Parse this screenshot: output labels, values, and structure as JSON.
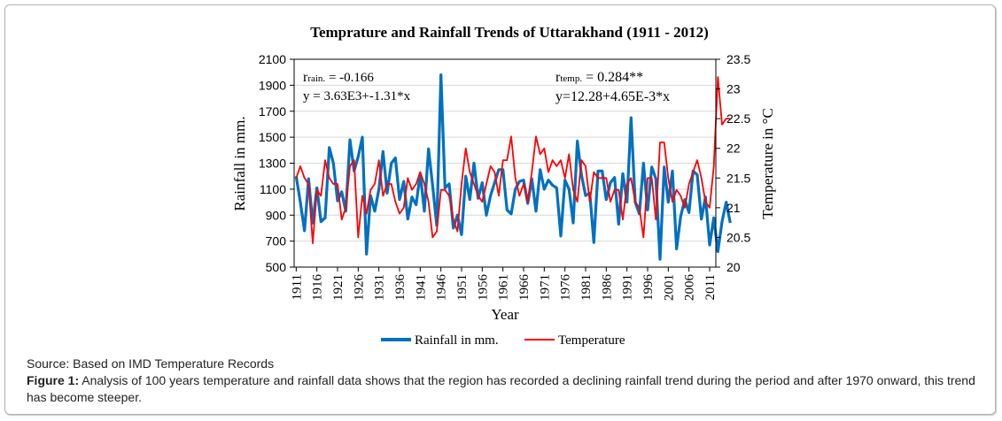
{
  "chart_data": {
    "type": "line",
    "title": "Temprature and Rainfall Trends of Uttarakhand (1911 - 2012)",
    "xlabel": "Year",
    "ylabel": "Rainfall in mm.",
    "y2label": "Temperature in °C",
    "x_start": 1911,
    "x_end": 2012,
    "x_ticks": [
      "1911",
      "1916",
      "1921",
      "1926",
      "1931",
      "1936",
      "1941",
      "1946",
      "1951",
      "1956",
      "1961",
      "1966",
      "1971",
      "1976",
      "1981",
      "1986",
      "1991",
      "1996",
      "2001",
      "2006",
      "2011"
    ],
    "ylim": [
      500,
      2100
    ],
    "y_ticks": [
      "500",
      "700",
      "900",
      "1100",
      "1300",
      "1500",
      "1700",
      "1900",
      "2100"
    ],
    "y2lim": [
      20,
      23.5
    ],
    "y2_ticks": [
      "20",
      "20.5",
      "21",
      "21.5",
      "22",
      "22.5",
      "23",
      "23.5"
    ],
    "grid": true,
    "legend_position": "bottom",
    "annotations": {
      "rain_r_label": "r",
      "rain_r_sub": "rain.",
      "rain_r_value": " = -0.166",
      "rain_eq": "y = 3.63E3+-1.31*x",
      "temp_r_label": "r",
      "temp_r_sub": "temp.",
      "temp_r_value": " = 0.284**",
      "temp_eq": "y=12.28+4.65E-3*x"
    },
    "series": [
      {
        "name": "Rainfall in mm.",
        "axis": "left",
        "color": "#0070c0",
        "values": [
          1200,
          1000,
          780,
          1180,
          840,
          1110,
          850,
          880,
          1420,
          1300,
          1010,
          1080,
          930,
          1480,
          1240,
          1350,
          1500,
          600,
          1050,
          930,
          1100,
          1390,
          1070,
          1300,
          1340,
          1020,
          1160,
          870,
          1040,
          980,
          1220,
          930,
          1410,
          1130,
          820,
          1980,
          1110,
          1140,
          800,
          900,
          750,
          1200,
          1020,
          1300,
          1030,
          1150,
          900,
          1050,
          1150,
          1250,
          1250,
          940,
          910,
          1100,
          1160,
          1170,
          990,
          1180,
          930,
          1250,
          1100,
          1170,
          1130,
          1110,
          740,
          1170,
          1100,
          840,
          1470,
          1210,
          1050,
          1070,
          690,
          1240,
          1240,
          1020,
          1150,
          1190,
          830,
          1220,
          1000,
          1650,
          1000,
          910,
          1300,
          940,
          1270,
          1180,
          560,
          1270,
          1000,
          1240,
          640,
          890,
          1020,
          920,
          1240,
          1210,
          870,
          1040,
          670,
          880,
          620,
          850,
          1000,
          840
        ]
      },
      {
        "name": "Temperature",
        "axis": "right",
        "color": "#ff0000",
        "values": [
          21.5,
          21.7,
          21.5,
          21.4,
          20.4,
          21.3,
          21.2,
          21.8,
          21.5,
          21.4,
          21.4,
          20.8,
          21.0,
          21.7,
          21.8,
          20.5,
          21.2,
          20.9,
          21.3,
          21.4,
          21.8,
          21.2,
          21.4,
          21.4,
          21.1,
          20.9,
          21.0,
          21.5,
          21.3,
          21.4,
          21.6,
          21.4,
          21.1,
          20.5,
          20.6,
          21.3,
          21.3,
          21.2,
          20.8,
          20.6,
          21.4,
          22.0,
          21.6,
          21.4,
          21.2,
          21.1,
          21.4,
          21.7,
          21.6,
          21.2,
          21.8,
          21.8,
          22.2,
          21.5,
          21.2,
          21.4,
          21.1,
          21.6,
          22.2,
          21.9,
          22.0,
          21.6,
          21.8,
          21.7,
          21.8,
          21.5,
          21.9,
          21.3,
          21.1,
          21.8,
          21.7,
          21.1,
          21.6,
          21.5,
          21.5,
          21.5,
          21.1,
          21.3,
          21.3,
          20.8,
          21.4,
          21.5,
          21.1,
          21.0,
          20.5,
          21.5,
          21.5,
          20.8,
          22.1,
          22.1,
          21.5,
          21.1,
          21.3,
          21.2,
          21.0,
          21.4,
          21.6,
          21.8,
          21.5,
          21.1,
          21.0,
          21.7,
          23.2,
          22.4,
          22.5,
          22.5
        ]
      }
    ]
  },
  "caption": {
    "source": "Source: Based on IMD Temperature Records",
    "figure_label": "Figure 1:",
    "figure_text": " Analysis of 100 years temperature and rainfall data shows that the region has recorded a declining rainfall trend during the period and after 1970 onward, this trend has become steeper."
  }
}
